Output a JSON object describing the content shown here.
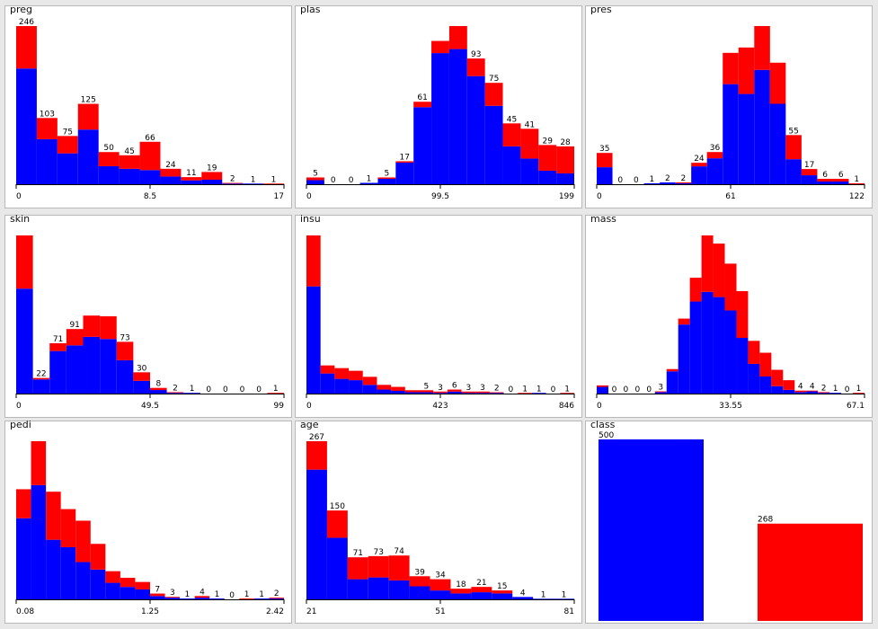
{
  "colors": {
    "primary": "#0000ff",
    "secondary": "#ff0000"
  },
  "chart_data": [
    {
      "type": "bar",
      "title": "preg",
      "counts": [
        "246",
        "103",
        "75",
        "125",
        "50",
        "45",
        "66",
        "24",
        "11",
        "19",
        "2",
        "1",
        "1"
      ],
      "tick_labels": [
        "0",
        "8.5",
        "17"
      ],
      "series": [
        {
          "values": [
            180,
            70,
            48,
            85,
            28,
            24,
            22,
            12,
            6,
            7,
            1,
            1,
            0
          ]
        },
        {
          "values": [
            66,
            33,
            27,
            40,
            22,
            21,
            44,
            12,
            5,
            12,
            1,
            0,
            1
          ]
        }
      ]
    },
    {
      "type": "bar",
      "title": "plas",
      "counts": [
        "5",
        "0",
        "0",
        "1",
        "5",
        "17",
        "61",
        "",
        "",
        "93",
        "75",
        "45",
        "41",
        "29",
        "28"
      ],
      "tick_labels": [
        "0",
        "99.5",
        "199"
      ],
      "series": [
        {
          "values": [
            3,
            0,
            0,
            1,
            4,
            16,
            57,
            97,
            100,
            80,
            58,
            28,
            19,
            10,
            8
          ]
        },
        {
          "values": [
            2,
            0,
            0,
            0,
            1,
            1,
            4,
            9,
            17,
            13,
            17,
            17,
            22,
            19,
            20
          ]
        }
      ]
    },
    {
      "type": "bar",
      "title": "pres",
      "counts": [
        "35",
        "0",
        "0",
        "1",
        "2",
        "2",
        "24",
        "36",
        "",
        "",
        "",
        "",
        "55",
        "17",
        "6",
        "6",
        "1"
      ],
      "tick_labels": [
        "0",
        "61",
        "122"
      ],
      "series": [
        {
          "values": [
            19,
            0,
            0,
            1,
            2,
            1,
            20,
            29,
            112,
            101,
            128,
            90,
            28,
            10,
            3,
            3,
            0
          ]
        },
        {
          "values": [
            16,
            0,
            0,
            0,
            0,
            1,
            4,
            7,
            35,
            52,
            49,
            46,
            27,
            7,
            3,
            3,
            1
          ]
        }
      ]
    },
    {
      "type": "bar",
      "title": "skin",
      "counts": [
        "",
        "22",
        "71",
        "91",
        "",
        "",
        "73",
        "30",
        "8",
        "2",
        "1",
        "0",
        "0",
        "0",
        "0",
        "1"
      ],
      "tick_labels": [
        "0",
        "49.5",
        "99"
      ],
      "series": [
        {
          "values": [
            148,
            20,
            60,
            68,
            80,
            77,
            47,
            18,
            5,
            1,
            1,
            0,
            0,
            0,
            0,
            0
          ]
        },
        {
          "values": [
            75,
            2,
            11,
            23,
            30,
            32,
            26,
            12,
            3,
            1,
            0,
            0,
            0,
            0,
            0,
            1
          ]
        }
      ]
    },
    {
      "type": "bar",
      "title": "insu",
      "counts": [
        "",
        "",
        "",
        "",
        "",
        "",
        "",
        "",
        "5",
        "3",
        "6",
        "3",
        "3",
        "2",
        "0",
        "1",
        "1",
        "0",
        "1"
      ],
      "tick_labels": [
        "0",
        "423",
        "846"
      ],
      "series": [
        {
          "values": [
            160,
            30,
            22,
            20,
            13,
            6,
            4,
            2,
            2,
            1,
            3,
            1,
            1,
            1,
            0,
            0,
            1,
            0,
            0
          ]
        },
        {
          "values": [
            76,
            12,
            16,
            14,
            12,
            7,
            6,
            3,
            3,
            2,
            3,
            2,
            2,
            1,
            0,
            1,
            0,
            0,
            1
          ]
        }
      ]
    },
    {
      "type": "bar",
      "title": "mass",
      "counts": [
        "",
        "0",
        "0",
        "0",
        "0",
        "3",
        "",
        "",
        "",
        "",
        "",
        "",
        "",
        "",
        "",
        "",
        "",
        "4",
        "4",
        "2",
        "1",
        "0",
        "1"
      ],
      "tick_labels": [
        "0",
        "33.55",
        "67.1"
      ],
      "series": [
        {
          "values": [
            9,
            0,
            0,
            0,
            0,
            2,
            30,
            93,
            124,
            137,
            130,
            112,
            75,
            40,
            23,
            10,
            5,
            2,
            3,
            1,
            1,
            0,
            0
          ]
        },
        {
          "values": [
            2,
            0,
            0,
            0,
            0,
            1,
            3,
            8,
            32,
            76,
            72,
            63,
            63,
            31,
            32,
            22,
            13,
            2,
            1,
            1,
            0,
            0,
            1
          ]
        }
      ]
    },
    {
      "type": "bar",
      "title": "pedi",
      "counts": [
        "",
        "",
        "",
        "",
        "",
        "",
        "",
        "",
        "",
        "7",
        "3",
        "1",
        "4",
        "1",
        "0",
        "1",
        "1",
        "2"
      ],
      "tick_labels": [
        "0.08",
        "1.25",
        "2.42"
      ],
      "series": [
        {
          "values": [
            98,
            138,
            72,
            63,
            45,
            36,
            20,
            15,
            12,
            4,
            2,
            1,
            2,
            1,
            0,
            0,
            1,
            1
          ]
        },
        {
          "values": [
            35,
            53,
            58,
            46,
            50,
            31,
            14,
            11,
            9,
            3,
            1,
            0,
            2,
            0,
            0,
            1,
            0,
            1
          ]
        }
      ]
    },
    {
      "type": "bar",
      "title": "age",
      "counts": [
        "267",
        "150",
        "71",
        "73",
        "74",
        "39",
        "34",
        "18",
        "21",
        "15",
        "4",
        "1",
        "1"
      ],
      "tick_labels": [
        "21",
        "51",
        "81"
      ],
      "series": [
        {
          "values": [
            219,
            104,
            34,
            37,
            32,
            22,
            15,
            10,
            12,
            10,
            4,
            1,
            1
          ]
        },
        {
          "values": [
            48,
            46,
            37,
            36,
            42,
            17,
            19,
            8,
            9,
            5,
            0,
            0,
            0
          ]
        }
      ]
    },
    {
      "type": "bar",
      "title": "class",
      "counts": [
        "500",
        "268"
      ],
      "tick_labels": [],
      "series": [
        {
          "values": [
            500,
            0
          ]
        },
        {
          "values": [
            0,
            268
          ]
        }
      ]
    }
  ]
}
